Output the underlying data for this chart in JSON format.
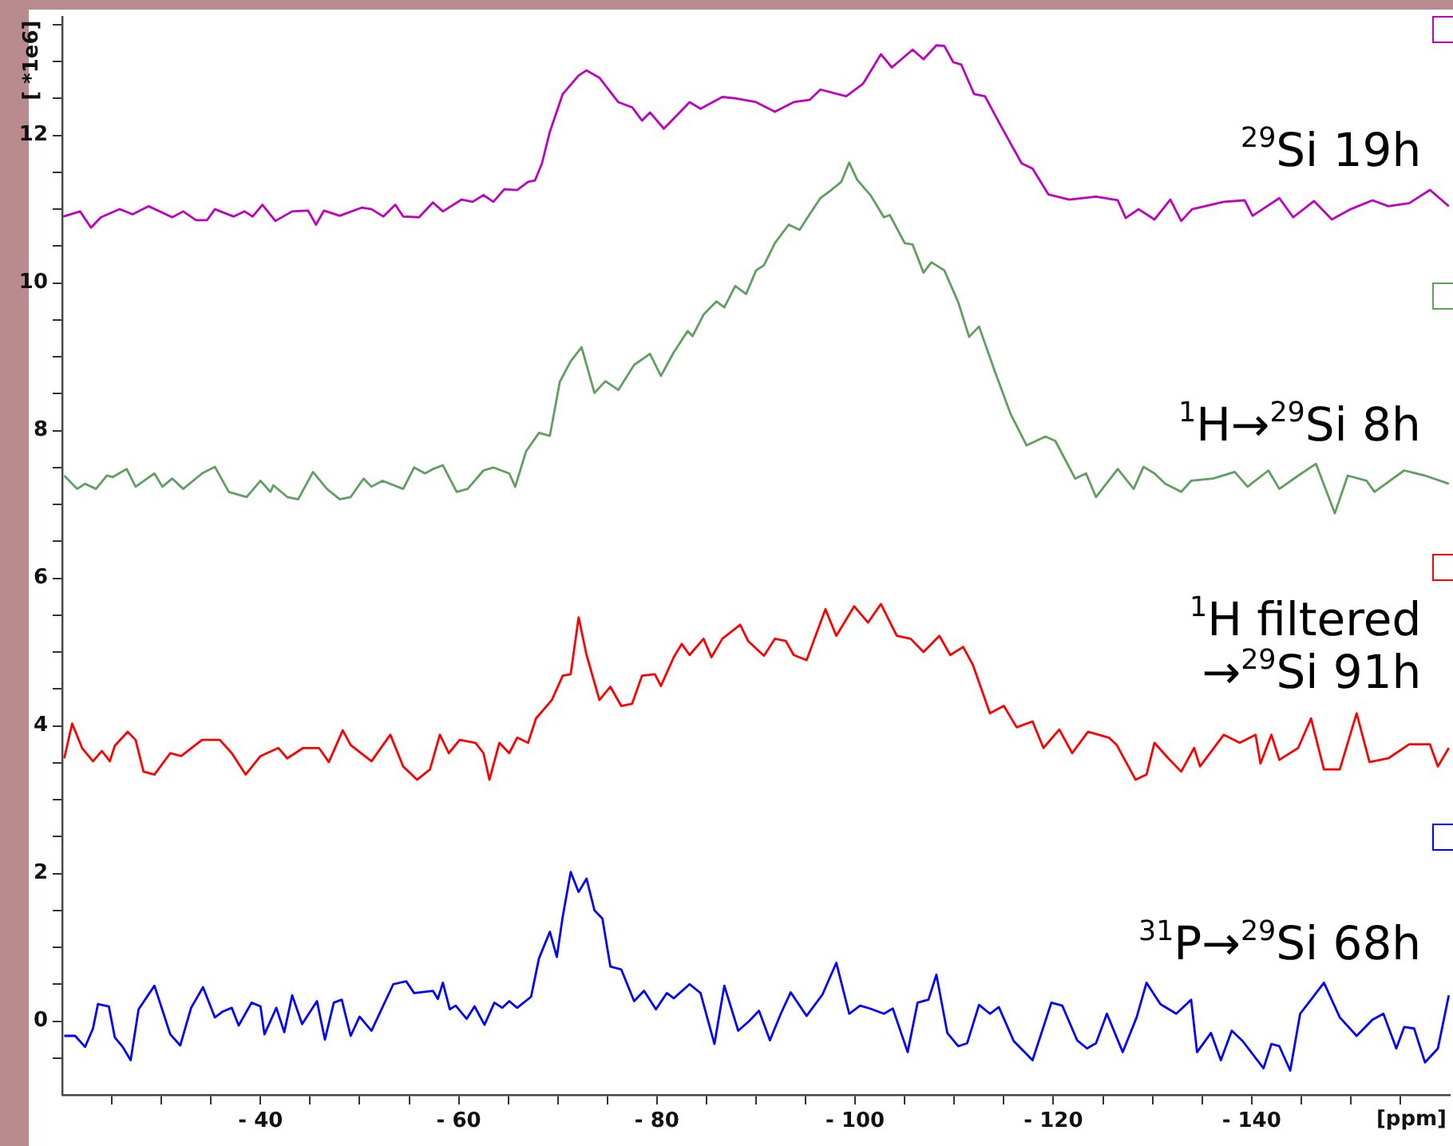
{
  "chart_data": {
    "type": "line",
    "xlabel": "[ppm]",
    "ylabel": "[ *1e6]",
    "xlim": [
      -20,
      -160
    ],
    "ylim": [
      -1,
      13.6
    ],
    "xticks": [
      {
        "value": -25,
        "label": null
      },
      {
        "value": -30,
        "label": null
      },
      {
        "value": -35,
        "label": null
      },
      {
        "value": -40,
        "label": "- 40"
      },
      {
        "value": -45,
        "label": null
      },
      {
        "value": -50,
        "label": null
      },
      {
        "value": -55,
        "label": null
      },
      {
        "value": -60,
        "label": "- 60"
      },
      {
        "value": -65,
        "label": null
      },
      {
        "value": -70,
        "label": null
      },
      {
        "value": -75,
        "label": null
      },
      {
        "value": -80,
        "label": "- 80"
      },
      {
        "value": -85,
        "label": null
      },
      {
        "value": -90,
        "label": null
      },
      {
        "value": -95,
        "label": null
      },
      {
        "value": -100,
        "label": "- 100"
      },
      {
        "value": -105,
        "label": null
      },
      {
        "value": -110,
        "label": null
      },
      {
        "value": -115,
        "label": null
      },
      {
        "value": -120,
        "label": "- 120"
      },
      {
        "value": -125,
        "label": null
      },
      {
        "value": -130,
        "label": null
      },
      {
        "value": -135,
        "label": null
      },
      {
        "value": -140,
        "label": "- 140"
      },
      {
        "value": -145,
        "label": null
      },
      {
        "value": -150,
        "label": null
      },
      {
        "value": -155,
        "label": null
      }
    ],
    "yticks": [
      {
        "value": -0.5,
        "label": null
      },
      0,
      {
        "value": 0.5,
        "label": null
      },
      {
        "value": 1,
        "label": null
      },
      {
        "value": 1.5,
        "label": null
      },
      2,
      {
        "value": 2.5,
        "label": null
      },
      {
        "value": 3,
        "label": null
      },
      {
        "value": 3.5,
        "label": null
      },
      4,
      {
        "value": 4.5,
        "label": null
      },
      {
        "value": 5,
        "label": null
      },
      {
        "value": 5.5,
        "label": null
      },
      6,
      {
        "value": 6.5,
        "label": null
      },
      {
        "value": 7,
        "label": null
      },
      {
        "value": 7.5,
        "label": null
      },
      8,
      {
        "value": 8.5,
        "label": null
      },
      {
        "value": 9,
        "label": null
      },
      {
        "value": 9.5,
        "label": null
      },
      10,
      {
        "value": 10.5,
        "label": null
      },
      {
        "value": 11,
        "label": null
      },
      {
        "value": 11.5,
        "label": null
      },
      12,
      {
        "value": 12.5,
        "label": null
      },
      {
        "value": 13,
        "label": null
      },
      {
        "value": 13.5,
        "label": null
      }
    ],
    "grid": false,
    "legend": "right",
    "marker": "none",
    "line_style": "solid",
    "series": [
      {
        "name": "$^{29}$Si 19h",
        "color": "#c000c0",
        "x": [
          -20.1,
          -21.8,
          -22.9,
          -23.9,
          -25.8,
          -27.1,
          -28.7,
          -31.1,
          -32.2,
          -33.5,
          -34.6,
          -35.4,
          -37.3,
          -38.4,
          -39.2,
          -40.2,
          -41.5,
          -43.2,
          -44.8,
          -45.6,
          -46.4,
          -48.0,
          -50.2,
          -51.2,
          -52.4,
          -53.6,
          -54.4,
          -56.0,
          -57.4,
          -58.4,
          -60.3,
          -61.4,
          -62.5,
          -63.5,
          -64.6,
          -65.9,
          -67.0,
          -67.7,
          -68.4,
          -69.2,
          -70.5,
          -72.1,
          -72.9,
          -74.2,
          -76.1,
          -77.5,
          -78.5,
          -79.3,
          -80.7,
          -83.3,
          -84.4,
          -86.6,
          -88.0,
          -90.0,
          -91.9,
          -93.8,
          -95.4,
          -96.5,
          -99.1,
          -100.8,
          -101.8,
          -102.6,
          -103.7,
          -105.8,
          -106.9,
          -108.2,
          -109.0,
          -109.9,
          -110.7,
          -112.0,
          -113.1,
          -114.7,
          -116.8,
          -117.9,
          -119.5,
          -121.6,
          -124.3,
          -126.5,
          -127.3,
          -128.6,
          -130.2,
          -131.8,
          -132.9,
          -134.0,
          -137.2,
          -139.3,
          -140.1,
          -142.8,
          -144.2,
          -146.3,
          -148.1,
          -150.0,
          -152.2,
          -153.8,
          -155.9,
          -158.0,
          -159.9
        ],
        "values": [
          10.9,
          10.97,
          10.75,
          10.89,
          11.0,
          10.93,
          11.04,
          10.89,
          10.97,
          10.85,
          10.85,
          11.0,
          10.9,
          10.97,
          10.9,
          11.06,
          10.84,
          10.97,
          10.98,
          10.79,
          10.98,
          10.91,
          11.02,
          11.0,
          10.9,
          11.06,
          10.9,
          10.89,
          11.09,
          10.97,
          11.13,
          11.1,
          11.19,
          11.1,
          11.27,
          11.26,
          11.37,
          11.39,
          11.62,
          12.05,
          12.56,
          12.81,
          12.88,
          12.78,
          12.45,
          12.38,
          12.2,
          12.31,
          12.09,
          12.45,
          12.36,
          12.52,
          12.5,
          12.45,
          12.32,
          12.45,
          12.48,
          12.62,
          12.53,
          12.7,
          12.92,
          13.1,
          12.92,
          13.16,
          13.03,
          13.22,
          13.21,
          12.99,
          12.96,
          12.56,
          12.53,
          12.13,
          11.62,
          11.55,
          11.2,
          11.13,
          11.17,
          11.12,
          10.88,
          11.0,
          10.86,
          11.13,
          10.84,
          11.0,
          11.1,
          11.12,
          10.91,
          11.15,
          10.89,
          11.11,
          10.86,
          11.0,
          11.12,
          11.04,
          11.08,
          11.26,
          11.04
        ]
      },
      {
        "name": "$^{1}$H→$^{29}$Si 8h",
        "color": "#5f9f5f",
        "x": [
          -20.2,
          -21.5,
          -22.3,
          -23.4,
          -24.5,
          -25.1,
          -26.5,
          -27.4,
          -29.3,
          -30.1,
          -31.1,
          -32.2,
          -34.1,
          -35.4,
          -36.8,
          -38.6,
          -40.0,
          -41.0,
          -41.3,
          -42.7,
          -43.8,
          -45.3,
          -46.7,
          -48.0,
          -49.1,
          -50.4,
          -51.2,
          -52.3,
          -54.4,
          -55.5,
          -56.6,
          -57.4,
          -58.4,
          -59.8,
          -60.9,
          -62.5,
          -63.5,
          -65.1,
          -65.7,
          -66.8,
          -68.1,
          -69.2,
          -70.2,
          -71.3,
          -72.4,
          -73.7,
          -74.8,
          -76.1,
          -77.7,
          -79.3,
          -80.4,
          -81.7,
          -83.1,
          -83.6,
          -84.7,
          -86.0,
          -86.8,
          -87.9,
          -89.0,
          -90.0,
          -90.8,
          -91.9,
          -93.3,
          -94.4,
          -95.4,
          -96.5,
          -97.6,
          -98.6,
          -99.4,
          -100.2,
          -101.6,
          -102.9,
          -103.5,
          -105.0,
          -105.8,
          -106.9,
          -107.7,
          -109.0,
          -110.4,
          -111.5,
          -112.5,
          -114.1,
          -115.7,
          -117.3,
          -119.2,
          -120.2,
          -122.2,
          -123.3,
          -124.3,
          -126.5,
          -128.1,
          -129.1,
          -130.2,
          -131.3,
          -132.9,
          -133.9,
          -136.1,
          -138.3,
          -139.6,
          -141.7,
          -142.8,
          -144.7,
          -146.5,
          -148.4,
          -149.7,
          -151.6,
          -152.4,
          -155.4,
          -157.5,
          -159.9
        ],
        "values": [
          7.39,
          7.21,
          7.28,
          7.21,
          7.39,
          7.37,
          7.48,
          7.24,
          7.42,
          7.24,
          7.35,
          7.21,
          7.42,
          7.51,
          7.17,
          7.1,
          7.32,
          7.17,
          7.26,
          7.1,
          7.07,
          7.44,
          7.21,
          7.07,
          7.1,
          7.35,
          7.24,
          7.32,
          7.21,
          7.5,
          7.42,
          7.48,
          7.53,
          7.17,
          7.21,
          7.46,
          7.5,
          7.42,
          7.24,
          7.72,
          7.97,
          7.93,
          8.66,
          8.94,
          9.13,
          8.51,
          8.67,
          8.55,
          8.89,
          9.04,
          8.74,
          9.06,
          9.35,
          9.28,
          9.57,
          9.75,
          9.67,
          9.96,
          9.85,
          10.17,
          10.24,
          10.54,
          10.79,
          10.72,
          10.93,
          11.15,
          11.26,
          11.37,
          11.63,
          11.4,
          11.18,
          10.89,
          10.92,
          10.54,
          10.52,
          10.14,
          10.28,
          10.17,
          9.74,
          9.27,
          9.41,
          8.8,
          8.22,
          7.8,
          7.92,
          7.86,
          7.35,
          7.42,
          7.1,
          7.48,
          7.21,
          7.51,
          7.42,
          7.28,
          7.17,
          7.32,
          7.35,
          7.44,
          7.24,
          7.46,
          7.21,
          7.39,
          7.55,
          6.88,
          7.39,
          7.32,
          7.17,
          7.46,
          7.39,
          7.28
        ]
      },
      {
        "name": "$^{1}$H filtered\n→$^{29}$Si 91h",
        "color": "#ff0000",
        "x": [
          -20.2,
          -21.0,
          -22.0,
          -23.1,
          -24.0,
          -24.8,
          -25.3,
          -26.6,
          -27.4,
          -28.2,
          -29.3,
          -30.9,
          -32.0,
          -34.1,
          -35.9,
          -37.1,
          -38.5,
          -40.0,
          -41.8,
          -42.7,
          -44.3,
          -45.9,
          -46.9,
          -48.3,
          -49.1,
          -51.2,
          -53.1,
          -54.4,
          -55.8,
          -57.1,
          -58.1,
          -59.0,
          -60.1,
          -61.7,
          -62.5,
          -63.1,
          -64.1,
          -65.1,
          -65.9,
          -67.0,
          -67.8,
          -69.4,
          -70.5,
          -71.3,
          -72.1,
          -72.9,
          -74.2,
          -75.3,
          -76.4,
          -77.5,
          -78.5,
          -79.8,
          -80.4,
          -81.7,
          -82.5,
          -83.3,
          -84.7,
          -85.5,
          -86.6,
          -88.4,
          -89.2,
          -90.8,
          -91.9,
          -93.0,
          -93.8,
          -95.1,
          -97.0,
          -98.1,
          -99.9,
          -101.3,
          -102.6,
          -104.2,
          -105.6,
          -106.9,
          -108.5,
          -109.6,
          -110.9,
          -111.9,
          -113.6,
          -115.0,
          -116.3,
          -117.9,
          -119.0,
          -120.6,
          -121.9,
          -123.5,
          -125.6,
          -126.4,
          -128.3,
          -129.4,
          -130.2,
          -131.6,
          -132.9,
          -134.2,
          -134.8,
          -137.2,
          -138.8,
          -140.4,
          -140.9,
          -142.0,
          -142.8,
          -144.7,
          -146.0,
          -147.3,
          -148.9,
          -150.6,
          -151.9,
          -153.8,
          -155.9,
          -158.0,
          -158.8,
          -159.9
        ],
        "values": [
          3.56,
          4.03,
          3.7,
          3.52,
          3.66,
          3.52,
          3.73,
          3.92,
          3.81,
          3.38,
          3.34,
          3.63,
          3.59,
          3.81,
          3.81,
          3.63,
          3.34,
          3.59,
          3.7,
          3.56,
          3.7,
          3.7,
          3.51,
          3.94,
          3.74,
          3.52,
          3.88,
          3.45,
          3.27,
          3.41,
          3.88,
          3.63,
          3.81,
          3.77,
          3.63,
          3.27,
          3.77,
          3.63,
          3.84,
          3.77,
          4.1,
          4.35,
          4.68,
          4.7,
          5.47,
          4.96,
          4.35,
          4.53,
          4.27,
          4.3,
          4.68,
          4.7,
          4.54,
          4.93,
          5.11,
          4.96,
          5.18,
          4.93,
          5.18,
          5.37,
          5.15,
          4.95,
          5.18,
          5.15,
          4.96,
          4.89,
          5.58,
          5.22,
          5.62,
          5.4,
          5.65,
          5.22,
          5.18,
          5.0,
          5.22,
          4.96,
          5.07,
          4.82,
          4.17,
          4.27,
          3.98,
          4.06,
          3.7,
          3.95,
          3.63,
          3.92,
          3.84,
          3.74,
          3.27,
          3.34,
          3.77,
          3.56,
          3.38,
          3.7,
          3.45,
          3.88,
          3.77,
          3.88,
          3.49,
          3.88,
          3.54,
          3.7,
          4.1,
          3.41,
          3.41,
          4.17,
          3.51,
          3.56,
          3.75,
          3.75,
          3.45,
          3.7
        ]
      },
      {
        "name": "$^{31}$P→$^{29}$Si 68h",
        "color": "#0000ff",
        "x": [
          -20.2,
          -21.3,
          -22.3,
          -23.1,
          -23.6,
          -24.7,
          -25.3,
          -26.1,
          -26.9,
          -27.7,
          -29.3,
          -30.9,
          -31.9,
          -33.0,
          -34.2,
          -35.4,
          -36.2,
          -37.1,
          -37.8,
          -39.1,
          -40.0,
          -40.4,
          -41.6,
          -42.4,
          -43.2,
          -44.2,
          -45.7,
          -46.5,
          -47.4,
          -48.2,
          -49.1,
          -50.0,
          -51.2,
          -53.4,
          -54.7,
          -55.5,
          -57.4,
          -57.9,
          -58.4,
          -59.1,
          -59.7,
          -60.8,
          -61.6,
          -62.6,
          -63.6,
          -64.4,
          -65.1,
          -65.9,
          -67.3,
          -68.1,
          -69.2,
          -69.9,
          -70.5,
          -71.3,
          -72.1,
          -72.9,
          -73.7,
          -74.5,
          -75.3,
          -76.4,
          -77.7,
          -78.7,
          -79.9,
          -81.0,
          -81.7,
          -83.3,
          -84.4,
          -85.8,
          -86.8,
          -88.2,
          -89.3,
          -90.3,
          -91.4,
          -92.5,
          -93.5,
          -95.1,
          -96.7,
          -98.1,
          -99.4,
          -100.5,
          -101.5,
          -102.9,
          -103.8,
          -105.3,
          -106.3,
          -107.4,
          -108.2,
          -109.3,
          -110.4,
          -111.3,
          -112.5,
          -113.6,
          -114.5,
          -116.0,
          -117.9,
          -119.8,
          -120.9,
          -122.4,
          -123.4,
          -124.3,
          -125.4,
          -127.0,
          -128.4,
          -129.4,
          -130.8,
          -132.4,
          -133.9,
          -134.5,
          -135.9,
          -136.9,
          -138.0,
          -139.1,
          -141.2,
          -142.0,
          -142.8,
          -143.9,
          -144.9,
          -146.0,
          -147.3,
          -148.9,
          -150.6,
          -152.2,
          -153.3,
          -154.6,
          -155.4,
          -156.4,
          -157.5,
          -158.8,
          -159.9
        ],
        "values": [
          -0.2,
          -0.2,
          -0.35,
          -0.1,
          0.23,
          0.2,
          -0.22,
          -0.35,
          -0.53,
          0.16,
          0.48,
          -0.18,
          -0.33,
          0.18,
          0.46,
          0.05,
          0.13,
          0.18,
          -0.06,
          0.25,
          0.2,
          -0.18,
          0.18,
          -0.15,
          0.35,
          -0.04,
          0.27,
          -0.25,
          0.25,
          0.29,
          -0.2,
          0.06,
          -0.13,
          0.5,
          0.54,
          0.38,
          0.41,
          0.3,
          0.52,
          0.16,
          0.21,
          0.03,
          0.2,
          -0.05,
          0.25,
          0.18,
          0.27,
          0.18,
          0.33,
          0.85,
          1.21,
          0.87,
          1.42,
          2.02,
          1.75,
          1.93,
          1.5,
          1.39,
          0.74,
          0.7,
          0.27,
          0.41,
          0.16,
          0.38,
          0.31,
          0.5,
          0.38,
          -0.31,
          0.48,
          -0.13,
          0.0,
          0.14,
          -0.26,
          0.1,
          0.39,
          0.07,
          0.36,
          0.79,
          0.1,
          0.21,
          0.17,
          0.1,
          0.17,
          -0.42,
          0.25,
          0.29,
          0.63,
          -0.16,
          -0.34,
          -0.3,
          0.22,
          0.1,
          0.19,
          -0.27,
          -0.53,
          0.25,
          0.21,
          -0.26,
          -0.37,
          -0.3,
          0.1,
          -0.42,
          0.05,
          0.52,
          0.23,
          0.1,
          0.29,
          -0.42,
          -0.16,
          -0.53,
          -0.13,
          -0.27,
          -0.64,
          -0.31,
          -0.34,
          -0.67,
          0.1,
          0.29,
          0.52,
          0.05,
          -0.2,
          0.02,
          0.1,
          -0.37,
          -0.08,
          -0.1,
          -0.56,
          -0.37,
          0.35
        ]
      }
    ]
  }
}
